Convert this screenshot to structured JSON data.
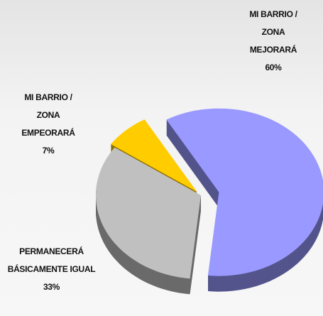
{
  "chart_data": {
    "type": "pie",
    "categories": [
      "MI BARRIO / ZONA MEJORARÁ",
      "PERMANECERÁ BÁSICAMENTE IGUAL",
      "MI BARRIO / ZONA EMPEORARÁ"
    ],
    "values": [
      60,
      33,
      7
    ],
    "value_labels": [
      "60%",
      "33%",
      "7%"
    ],
    "colors": [
      "#9999ff",
      "#c0c0c0",
      "#ffcc00"
    ]
  }
}
